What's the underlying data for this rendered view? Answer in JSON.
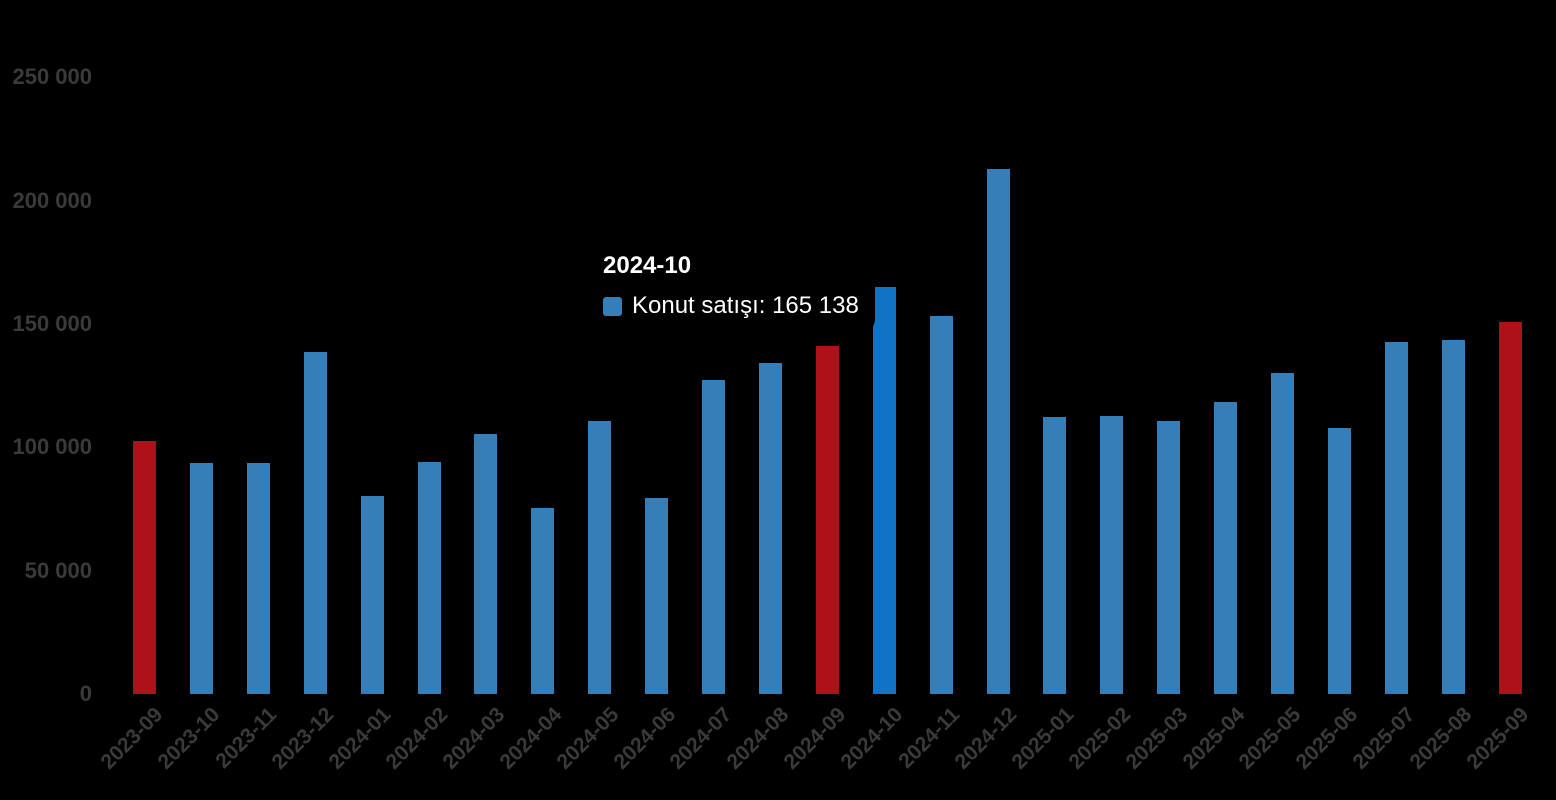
{
  "chart_data": {
    "type": "bar",
    "title": "",
    "xlabel": "",
    "ylabel": "",
    "categories": [
      "2023-09",
      "2023-10",
      "2023-11",
      "2023-12",
      "2024-01",
      "2024-02",
      "2024-03",
      "2024-04",
      "2024-05",
      "2024-06",
      "2024-07",
      "2024-08",
      "2024-09",
      "2024-10",
      "2024-11",
      "2024-12",
      "2025-01",
      "2025-02",
      "2025-03",
      "2025-04",
      "2025-05",
      "2025-06",
      "2025-07",
      "2025-08",
      "2025-09"
    ],
    "series": [
      {
        "name": "Konut satışı",
        "values": [
          102656,
          93761,
          93514,
          138577,
          80308,
          93902,
          105476,
          75569,
          110588,
          79313,
          127088,
          134155,
          140919,
          165138,
          153014,
          212637,
          112173,
          112818,
          110795,
          118359,
          130025,
          107723,
          142858,
          143319,
          150657
        ]
      }
    ],
    "ylim": [
      0,
      250000
    ],
    "y_tick_values": [
      0,
      50000,
      100000,
      150000,
      200000,
      250000
    ],
    "y_tick_labels": [
      "0",
      "50 000",
      "100 000",
      "150 000",
      "200 000",
      "250 000"
    ],
    "grid": false,
    "legend_position": "none",
    "x_label_rotation": -45,
    "highlight_red_categories": [
      "2023-09",
      "2024-09",
      "2025-09"
    ],
    "hovered_category": "2024-10",
    "colors": {
      "bar_default": "#357eb8",
      "bar_red": "#ad1219",
      "bar_hover": "#1173c5",
      "axis_label": "#3a3a3a",
      "background": "#000000",
      "tooltip_text": "#ffffff"
    },
    "tooltip": {
      "title": "2024-10",
      "series_label": "Konut satışı",
      "value_text": "165 138",
      "text": "Konut satışı: 165 138",
      "swatch_color": "#357eb8"
    }
  }
}
